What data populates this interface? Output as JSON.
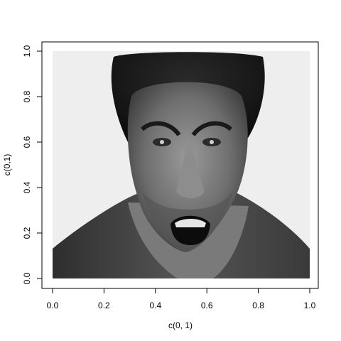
{
  "chart_data": {
    "type": "scatter",
    "xlabel": "c(0, 1)",
    "ylabel": "c(0,1)",
    "xlim": [
      0,
      1
    ],
    "ylim": [
      0,
      1
    ],
    "x_ticks": [
      {
        "value": 0.0,
        "label": "0.0"
      },
      {
        "value": 0.2,
        "label": "0.2"
      },
      {
        "value": 0.4,
        "label": "0.4"
      },
      {
        "value": 0.6,
        "label": "0.6"
      },
      {
        "value": 0.8,
        "label": "0.8"
      },
      {
        "value": 1.0,
        "label": "1.0"
      }
    ],
    "y_ticks": [
      {
        "value": 0.0,
        "label": "0.0"
      },
      {
        "value": 0.2,
        "label": "0.2"
      },
      {
        "value": 0.4,
        "label": "0.4"
      },
      {
        "value": 0.6,
        "label": "0.6"
      },
      {
        "value": 0.8,
        "label": "0.8"
      },
      {
        "value": 1.0,
        "label": "1.0"
      }
    ],
    "raster_image": {
      "description": "grayscale photo of a man with an angry snarling expression",
      "extent": {
        "x": [
          0,
          1
        ],
        "y": [
          0,
          1
        ]
      }
    },
    "grid": false,
    "legend": "none"
  },
  "colors": {
    "axis": "#000000",
    "background": "#ffffff",
    "photo_backdrop": "#eeeeee"
  }
}
